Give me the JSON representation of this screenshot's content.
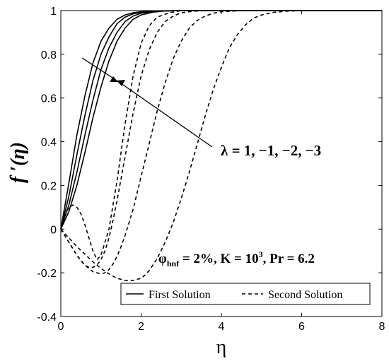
{
  "chart_data": {
    "type": "line",
    "xlabel": "η",
    "ylabel": "f ′(η)",
    "xlim": [
      0,
      8
    ],
    "ylim": [
      -0.4,
      1
    ],
    "xticks": [
      0,
      2,
      4,
      6,
      8
    ],
    "yticks": [
      -0.4,
      -0.2,
      0,
      0.2,
      0.4,
      0.6,
      0.8,
      1
    ],
    "xtick_labels": [
      "0",
      "2",
      "4",
      "6",
      "8"
    ],
    "ytick_labels": [
      "-0.4",
      "-0.2",
      "0",
      "0.2",
      "0.4",
      "0.6",
      "0.8",
      "1"
    ],
    "grid": false,
    "legend_position": "bottom-right",
    "legend": {
      "first": "First Solution",
      "second": "Second Solution"
    },
    "annotations": {
      "lambda": "λ = 1, −1, −2, −3",
      "params_phi": "φ",
      "params_sub": "hnf",
      "params_mid": " = 2%, K = 10",
      "params_sup": "3",
      "params_end": ", Pr = 6.2"
    },
    "series": [
      {
        "style": "solid",
        "x": [
          0,
          0.2,
          0.4,
          0.6,
          0.8,
          1.0,
          1.2,
          1.4,
          1.6,
          1.8,
          2.0,
          2.3,
          2.6,
          3.0,
          3.5,
          4.0,
          5.0,
          6.0,
          7.0,
          8.0
        ],
        "y": [
          0,
          0.21,
          0.43,
          0.61,
          0.76,
          0.86,
          0.92,
          0.96,
          0.98,
          0.99,
          0.995,
          0.998,
          0.999,
          1,
          1,
          1,
          1,
          1,
          1,
          1
        ]
      },
      {
        "style": "solid",
        "x": [
          0,
          0.2,
          0.4,
          0.6,
          0.8,
          1.0,
          1.2,
          1.4,
          1.6,
          1.8,
          2.0,
          2.3,
          2.6,
          3.0,
          3.5,
          4.0,
          5.0,
          6.0,
          7.0,
          8.0
        ],
        "y": [
          0,
          0.15,
          0.34,
          0.52,
          0.68,
          0.8,
          0.88,
          0.94,
          0.97,
          0.985,
          0.992,
          0.997,
          0.999,
          1,
          1,
          1,
          1,
          1,
          1,
          1
        ]
      },
      {
        "style": "solid",
        "x": [
          0,
          0.2,
          0.4,
          0.6,
          0.8,
          1.0,
          1.2,
          1.4,
          1.6,
          1.8,
          2.0,
          2.3,
          2.6,
          3.0,
          3.5,
          4.0,
          5.0,
          6.0,
          7.0,
          8.0
        ],
        "y": [
          0,
          0.11,
          0.26,
          0.43,
          0.59,
          0.73,
          0.83,
          0.9,
          0.95,
          0.975,
          0.988,
          0.996,
          0.999,
          1,
          1,
          1,
          1,
          1,
          1,
          1
        ]
      },
      {
        "style": "solid",
        "x": [
          0,
          0.2,
          0.4,
          0.6,
          0.8,
          1.0,
          1.2,
          1.4,
          1.6,
          1.8,
          2.0,
          2.3,
          2.6,
          3.0,
          3.5,
          4.0,
          5.0,
          6.0,
          7.0,
          8.0
        ],
        "y": [
          0,
          0.08,
          0.2,
          0.35,
          0.51,
          0.65,
          0.77,
          0.86,
          0.92,
          0.96,
          0.98,
          0.993,
          0.998,
          1,
          1,
          1,
          1,
          1,
          1,
          1
        ]
      },
      {
        "style": "dashed",
        "x": [
          0,
          0.1,
          0.2,
          0.3,
          0.4,
          0.5,
          0.6,
          0.7,
          0.8,
          0.9,
          1.0,
          1.2,
          1.4,
          1.6,
          1.8,
          2.0,
          2.2,
          2.4,
          2.7,
          3.0,
          3.5,
          4.0,
          5.0,
          6.0,
          7.0,
          8.0
        ],
        "y": [
          0,
          0.06,
          0.1,
          0.11,
          0.1,
          0.07,
          0.02,
          -0.04,
          -0.1,
          -0.14,
          -0.12,
          0.0,
          0.22,
          0.48,
          0.7,
          0.85,
          0.93,
          0.97,
          0.99,
          1,
          1,
          1,
          1,
          1,
          1,
          1
        ]
      },
      {
        "style": "dashed",
        "x": [
          0,
          0.1,
          0.2,
          0.3,
          0.4,
          0.5,
          0.6,
          0.7,
          0.8,
          0.9,
          1.0,
          1.1,
          1.2,
          1.3,
          1.4,
          1.6,
          1.8,
          2.0,
          2.2,
          2.4,
          2.6,
          2.8,
          3.0,
          3.3,
          3.6,
          4.0,
          5.0,
          6.0,
          7.0,
          8.0
        ],
        "y": [
          0,
          -0.03,
          -0.06,
          -0.09,
          -0.12,
          -0.145,
          -0.165,
          -0.175,
          -0.175,
          -0.165,
          -0.14,
          -0.1,
          -0.04,
          0.04,
          0.13,
          0.33,
          0.53,
          0.7,
          0.82,
          0.9,
          0.95,
          0.975,
          0.99,
          0.997,
          1,
          1,
          1,
          1,
          1,
          1
        ]
      },
      {
        "style": "dashed",
        "x": [
          0,
          0.2,
          0.4,
          0.6,
          0.8,
          1.0,
          1.1,
          1.2,
          1.3,
          1.4,
          1.5,
          1.6,
          1.8,
          2.0,
          2.2,
          2.4,
          2.6,
          2.8,
          3.0,
          3.2,
          3.4,
          3.6,
          3.8,
          4.0,
          4.4,
          5.0,
          6.0,
          7.0,
          8.0
        ],
        "y": [
          0,
          -0.06,
          -0.12,
          -0.165,
          -0.195,
          -0.205,
          -0.2,
          -0.185,
          -0.16,
          -0.125,
          -0.08,
          -0.03,
          0.09,
          0.24,
          0.39,
          0.54,
          0.67,
          0.78,
          0.86,
          0.92,
          0.955,
          0.975,
          0.988,
          0.995,
          0.999,
          1,
          1,
          1,
          1
        ]
      },
      {
        "style": "dashed",
        "x": [
          0,
          0.2,
          0.4,
          0.6,
          0.8,
          1.0,
          1.2,
          1.4,
          1.6,
          1.8,
          2.0,
          2.1,
          2.2,
          2.4,
          2.6,
          2.8,
          3.0,
          3.2,
          3.4,
          3.6,
          3.8,
          4.0,
          4.2,
          4.4,
          4.6,
          4.8,
          5.0,
          5.3,
          5.6,
          6.0,
          7.0,
          8.0
        ],
        "y": [
          0,
          -0.04,
          -0.08,
          -0.115,
          -0.15,
          -0.18,
          -0.205,
          -0.225,
          -0.235,
          -0.235,
          -0.225,
          -0.21,
          -0.19,
          -0.135,
          -0.06,
          0.03,
          0.14,
          0.26,
          0.39,
          0.52,
          0.64,
          0.74,
          0.83,
          0.89,
          0.935,
          0.965,
          0.98,
          0.992,
          0.997,
          1,
          1,
          1
        ]
      }
    ]
  }
}
